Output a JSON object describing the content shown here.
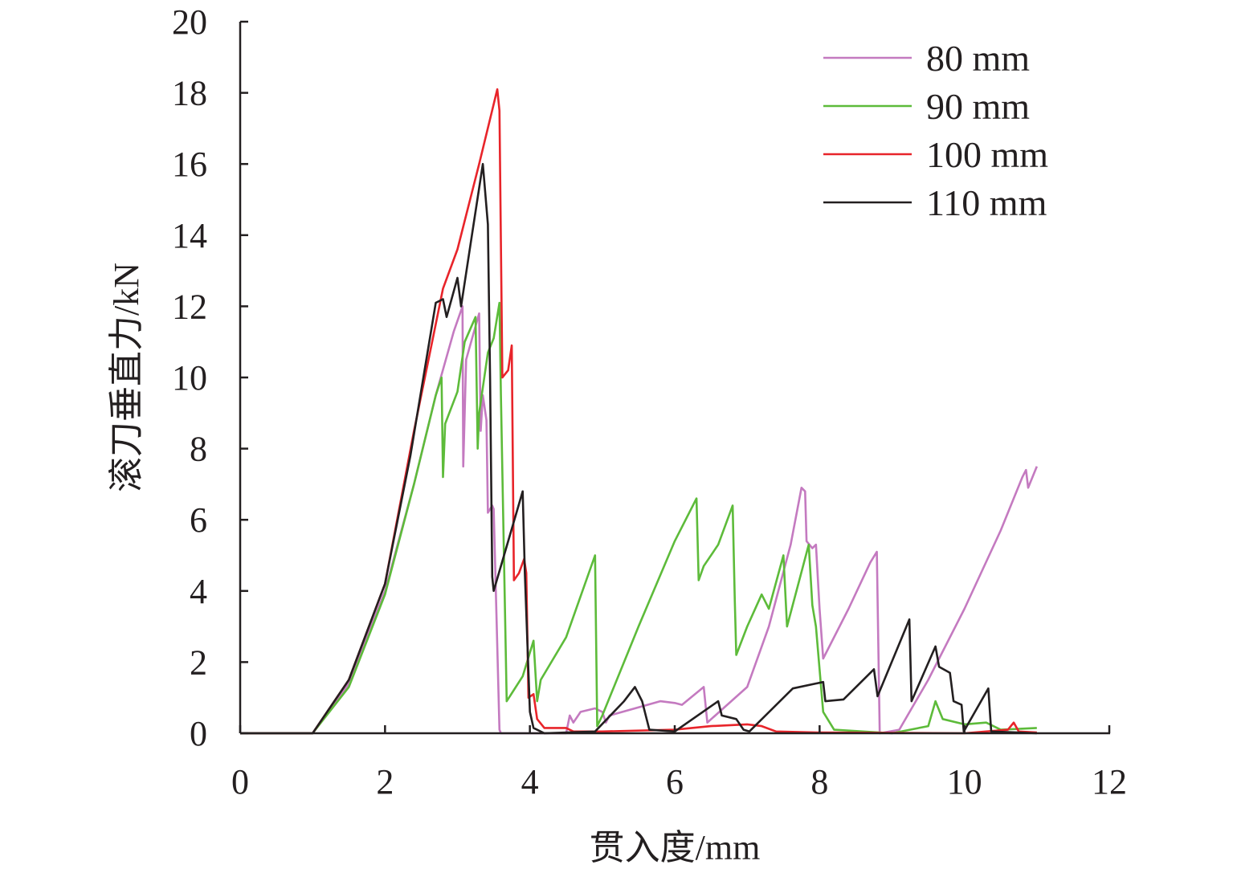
{
  "chart_data": {
    "type": "line",
    "title": "",
    "xlabel": "贯入度/mm",
    "ylabel": "滚刀垂直力/kN",
    "xlim": [
      0,
      12
    ],
    "ylim": [
      0,
      20
    ],
    "xticks": [
      "0",
      "2",
      "4",
      "6",
      "8",
      "10",
      "12"
    ],
    "yticks": [
      "0",
      "2",
      "4",
      "6",
      "8",
      "10",
      "12",
      "14",
      "16",
      "18",
      "20"
    ],
    "grid": false,
    "legend_position": "top-right",
    "series": [
      {
        "name": "80 mm",
        "color": "#c47ac0",
        "points": [
          [
            0,
            0
          ],
          [
            1,
            0
          ],
          [
            1.5,
            1.4
          ],
          [
            2,
            4
          ],
          [
            2.4,
            7
          ],
          [
            2.7,
            9.5
          ],
          [
            2.95,
            11.3
          ],
          [
            3.07,
            12
          ],
          [
            3.08,
            7.5
          ],
          [
            3.12,
            10.5
          ],
          [
            3.3,
            11.8
          ],
          [
            3.32,
            8.5
          ],
          [
            3.35,
            9.5
          ],
          [
            3.4,
            8.8
          ],
          [
            3.42,
            6.2
          ],
          [
            3.48,
            6.4
          ],
          [
            3.5,
            6.3
          ],
          [
            3.58,
            0.1
          ],
          [
            3.6,
            0
          ],
          [
            4.5,
            0
          ],
          [
            4.55,
            0.5
          ],
          [
            4.6,
            0.3
          ],
          [
            4.7,
            0.6
          ],
          [
            4.9,
            0.7
          ],
          [
            5.0,
            0.6
          ],
          [
            5.05,
            0.3
          ],
          [
            5.1,
            0.5
          ],
          [
            5.8,
            0.9
          ],
          [
            6.0,
            0.85
          ],
          [
            6.1,
            0.8
          ],
          [
            6.4,
            1.3
          ],
          [
            6.45,
            0.3
          ],
          [
            7,
            1.3
          ],
          [
            7.3,
            3
          ],
          [
            7.6,
            5.3
          ],
          [
            7.75,
            6.9
          ],
          [
            7.8,
            6.8
          ],
          [
            7.82,
            5.4
          ],
          [
            7.9,
            5.2
          ],
          [
            7.95,
            5.3
          ],
          [
            8.0,
            3.5
          ],
          [
            8.05,
            2.1
          ],
          [
            8.4,
            3.5
          ],
          [
            8.7,
            4.8
          ],
          [
            8.79,
            5.1
          ],
          [
            8.83,
            0
          ],
          [
            9.1,
            0.1
          ],
          [
            9.5,
            1.5
          ],
          [
            10,
            3.5
          ],
          [
            10.5,
            5.7
          ],
          [
            10.8,
            7.2
          ],
          [
            10.85,
            7.4
          ],
          [
            10.88,
            6.9
          ],
          [
            11,
            7.5
          ]
        ]
      },
      {
        "name": "90 mm",
        "color": "#5dbb3a",
        "points": [
          [
            0,
            0
          ],
          [
            1,
            0
          ],
          [
            1.5,
            1.3
          ],
          [
            2,
            3.9
          ],
          [
            2.4,
            7
          ],
          [
            2.7,
            9.5
          ],
          [
            2.78,
            10
          ],
          [
            2.8,
            7.2
          ],
          [
            2.83,
            8.7
          ],
          [
            3.0,
            9.6
          ],
          [
            3.1,
            11
          ],
          [
            3.25,
            11.7
          ],
          [
            3.28,
            8.0
          ],
          [
            3.3,
            9
          ],
          [
            3.42,
            10.7
          ],
          [
            3.5,
            11.1
          ],
          [
            3.58,
            12.1
          ],
          [
            3.6,
            9.5
          ],
          [
            3.68,
            0.9
          ],
          [
            3.9,
            1.6
          ],
          [
            4.05,
            2.6
          ],
          [
            4.1,
            0.9
          ],
          [
            4.15,
            1.5
          ],
          [
            4.5,
            2.7
          ],
          [
            4.9,
            5
          ],
          [
            4.93,
            0.2
          ],
          [
            5,
            0.5
          ],
          [
            5.5,
            3
          ],
          [
            6.0,
            5.4
          ],
          [
            6.3,
            6.6
          ],
          [
            6.33,
            4.3
          ],
          [
            6.4,
            4.7
          ],
          [
            6.6,
            5.3
          ],
          [
            6.8,
            6.4
          ],
          [
            6.83,
            3.7
          ],
          [
            6.85,
            2.2
          ],
          [
            7.0,
            3.0
          ],
          [
            7.2,
            3.9
          ],
          [
            7.3,
            3.5
          ],
          [
            7.5,
            5.0
          ],
          [
            7.55,
            3.0
          ],
          [
            7.85,
            5.3
          ],
          [
            7.9,
            3.6
          ],
          [
            7.95,
            3.0
          ],
          [
            8.05,
            0.6
          ],
          [
            8.2,
            0.1
          ],
          [
            9.0,
            0
          ],
          [
            9.5,
            0.2
          ],
          [
            9.6,
            0.9
          ],
          [
            9.7,
            0.4
          ],
          [
            10,
            0.25
          ],
          [
            10.3,
            0.3
          ],
          [
            10.5,
            0.1
          ],
          [
            11,
            0.15
          ]
        ]
      },
      {
        "name": "100 mm",
        "color": "#e8242a",
        "points": [
          [
            0,
            0
          ],
          [
            1,
            0
          ],
          [
            1.5,
            1.5
          ],
          [
            2,
            4.2
          ],
          [
            2.4,
            8.5
          ],
          [
            2.8,
            12.5
          ],
          [
            3.0,
            13.6
          ],
          [
            3.3,
            16
          ],
          [
            3.55,
            18.1
          ],
          [
            3.58,
            17.5
          ],
          [
            3.62,
            10
          ],
          [
            3.7,
            10.2
          ],
          [
            3.75,
            10.9
          ],
          [
            3.78,
            4.3
          ],
          [
            3.85,
            4.5
          ],
          [
            3.92,
            4.9
          ],
          [
            3.95,
            4.5
          ],
          [
            3.98,
            1
          ],
          [
            4.05,
            1.1
          ],
          [
            4.1,
            0.4
          ],
          [
            4.2,
            0.15
          ],
          [
            4.5,
            0.15
          ],
          [
            4.6,
            0.05
          ],
          [
            5,
            0.05
          ],
          [
            6,
            0.1
          ],
          [
            6.5,
            0.2
          ],
          [
            7,
            0.25
          ],
          [
            7.2,
            0.2
          ],
          [
            7.4,
            0.05
          ],
          [
            8,
            0.02
          ],
          [
            10,
            0
          ],
          [
            10.6,
            0.1
          ],
          [
            10.68,
            0.3
          ],
          [
            10.75,
            0.05
          ],
          [
            11,
            0.02
          ]
        ]
      },
      {
        "name": "110 mm",
        "color": "#231f20",
        "points": [
          [
            0,
            0
          ],
          [
            1,
            0
          ],
          [
            1.5,
            1.5
          ],
          [
            2,
            4.2
          ],
          [
            2.35,
            7.8
          ],
          [
            2.7,
            12.1
          ],
          [
            2.8,
            12.2
          ],
          [
            2.85,
            11.7
          ],
          [
            3.0,
            12.8
          ],
          [
            3.05,
            12.0
          ],
          [
            3.2,
            14
          ],
          [
            3.35,
            16
          ],
          [
            3.42,
            14.3
          ],
          [
            3.45,
            10
          ],
          [
            3.48,
            4.4
          ],
          [
            3.5,
            4.0
          ],
          [
            3.9,
            6.8
          ],
          [
            3.93,
            4.5
          ],
          [
            4.0,
            0.6
          ],
          [
            4.05,
            0.15
          ],
          [
            4.2,
            0
          ],
          [
            4.9,
            0.05
          ],
          [
            5.3,
            0.9
          ],
          [
            5.45,
            1.3
          ],
          [
            5.55,
            0.9
          ],
          [
            5.65,
            0.1
          ],
          [
            6,
            0.05
          ],
          [
            6.6,
            0.9
          ],
          [
            6.65,
            0.5
          ],
          [
            6.85,
            0.4
          ],
          [
            6.95,
            0.1
          ],
          [
            7.03,
            0.05
          ],
          [
            7.63,
            1.26
          ],
          [
            8.05,
            1.44
          ],
          [
            8.08,
            0.9
          ],
          [
            8.33,
            0.95
          ],
          [
            8.75,
            1.8
          ],
          [
            8.8,
            1.04
          ],
          [
            9.24,
            3.2
          ],
          [
            9.27,
            0.9
          ],
          [
            9.6,
            2.44
          ],
          [
            9.65,
            1.87
          ],
          [
            9.8,
            1.7
          ],
          [
            9.85,
            0.9
          ],
          [
            9.96,
            0.8
          ],
          [
            9.99,
            0.05
          ],
          [
            10.33,
            1.26
          ],
          [
            10.37,
            0.05
          ],
          [
            11,
            0
          ]
        ]
      }
    ]
  }
}
